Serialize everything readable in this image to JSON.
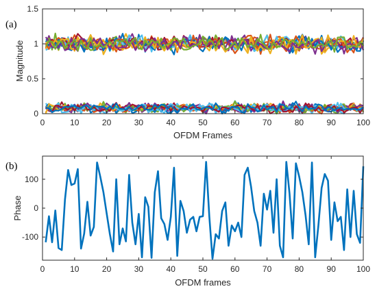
{
  "chart_data": [
    {
      "type": "line",
      "panel_label": "(a)",
      "xlabel": "OFDM Frames",
      "ylabel": "Magnitude",
      "xlim": [
        0,
        100
      ],
      "ylim": [
        0,
        1.5
      ],
      "xticks": [
        0,
        10,
        20,
        30,
        40,
        50,
        60,
        70,
        80,
        90,
        100
      ],
      "yticks": [
        0,
        0.5,
        1,
        1.5
      ],
      "ytick_labels": [
        "0",
        "0.5",
        "1",
        "1.5"
      ],
      "grid": false,
      "legend": "none",
      "bands": [
        {
          "center": 1.0,
          "spread": 0.2,
          "min": 0.76,
          "max": 1.2
        },
        {
          "center": 0.08,
          "spread": 0.12,
          "min": 0.0,
          "max": 0.2
        }
      ],
      "series_count_per_band": 12,
      "series_colors": [
        "#0072BD",
        "#D95319",
        "#EDB120",
        "#7E2F8E",
        "#77AC30",
        "#4DBEEE",
        "#A2142F"
      ]
    },
    {
      "type": "line",
      "panel_label": "(b)",
      "xlabel": "OFDM frames",
      "ylabel": "Phase",
      "xlim": [
        0,
        100
      ],
      "ylim": [
        -180,
        180
      ],
      "xticks": [
        0,
        10,
        20,
        30,
        40,
        50,
        60,
        70,
        80,
        90,
        100
      ],
      "yticks": [
        -100,
        0,
        100
      ],
      "grid": false,
      "legend": "none",
      "series": [
        {
          "color": "#0072BD",
          "x": [
            1,
            2,
            3,
            4,
            5,
            6,
            7,
            8,
            9,
            10,
            11,
            12,
            13,
            14,
            15,
            16,
            17,
            18,
            19,
            20,
            21,
            22,
            23,
            24,
            25,
            26,
            27,
            28,
            29,
            30,
            31,
            32,
            33,
            34,
            35,
            36,
            37,
            38,
            39,
            40,
            41,
            42,
            43,
            44,
            45,
            46,
            47,
            48,
            49,
            50,
            51,
            52,
            53,
            54,
            55,
            56,
            57,
            58,
            59,
            60,
            61,
            62,
            63,
            64,
            65,
            66,
            67,
            68,
            69,
            70,
            71,
            72,
            73,
            74,
            75,
            76,
            77,
            78,
            79,
            80,
            81,
            82,
            83,
            84,
            85,
            86,
            87,
            88,
            89,
            90,
            91,
            92,
            93,
            94,
            95,
            96,
            97,
            98,
            99,
            100
          ],
          "values": [
            -118,
            -28,
            -118,
            -8,
            -138,
            -145,
            30,
            132,
            80,
            85,
            135,
            -140,
            -88,
            22,
            -95,
            -65,
            158,
            110,
            55,
            -18,
            -90,
            -150,
            100,
            -125,
            -70,
            -115,
            115,
            -50,
            -125,
            -20,
            -170,
            38,
            5,
            -172,
            55,
            128,
            -35,
            -55,
            -110,
            -30,
            140,
            -165,
            25,
            -10,
            -85,
            -40,
            -30,
            -80,
            -30,
            -28,
            160,
            -30,
            -175,
            -90,
            -105,
            -10,
            20,
            -130,
            -60,
            -80,
            -50,
            -100,
            115,
            140,
            75,
            -10,
            -50,
            -130,
            50,
            -5,
            60,
            -85,
            100,
            -130,
            -170,
            160,
            50,
            -105,
            155,
            110,
            55,
            -25,
            -125,
            158,
            -170,
            -60,
            70,
            118,
            95,
            -110,
            20,
            -45,
            -30,
            -145,
            65,
            -100,
            60,
            -90,
            -120,
            145
          ]
        }
      ]
    }
  ]
}
